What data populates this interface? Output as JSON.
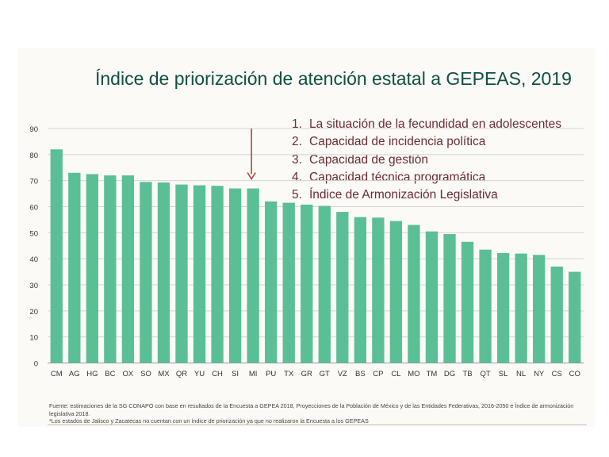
{
  "title": "Índice de priorización de atención estatal a GEPEAS, 2019",
  "criteria": [
    {
      "num": "1.",
      "text": "La situación de la fecundidad en adolescentes"
    },
    {
      "num": "2.",
      "text": "Capacidad de incidencia política"
    },
    {
      "num": "3.",
      "text": "Capacidad de gestión"
    },
    {
      "num": "4.",
      "text": "Capacidad técnica programática"
    },
    {
      "num": "5.",
      "text": "Índice de Armonización Legislativa"
    }
  ],
  "footnote": {
    "source": "Fuente: estimaciones de la SG CONAPO con base en resultados de la Encuesta a GEPEA 2018, Proyecciones de la Población de México y de las Entidades Federativas, 2016-2050 e Índice de armonización legislativa 2018.",
    "note": "*Los estados de Jalisco y Zacatecas no cuentan con un índice de priorización ya que no realizaron la Encuesta a los GEPEAS"
  },
  "colors": {
    "bar": "#5bbf96",
    "title": "#0f4f43",
    "criteria": "#6b2c33",
    "arrow": "#b5493f",
    "grid": "#d4d4d4"
  },
  "chart_data": {
    "type": "bar",
    "categories": [
      "CM",
      "AG",
      "HG",
      "BC",
      "OX",
      "SO",
      "MX",
      "QR",
      "YU",
      "CH",
      "SI",
      "MI",
      "PU",
      "TX",
      "GR",
      "GT",
      "VZ",
      "BS",
      "CP",
      "CL",
      "MO",
      "TM",
      "DG",
      "TB",
      "QT",
      "SL",
      "NL",
      "NY",
      "CS",
      "CO"
    ],
    "values": [
      82,
      73,
      72.5,
      72,
      72,
      69.5,
      69.3,
      68.5,
      68.2,
      68,
      67,
      67,
      62,
      61.5,
      60.8,
      60.3,
      58,
      56,
      55.8,
      54.5,
      53,
      50.5,
      49.5,
      46.5,
      43.5,
      42.2,
      42,
      41.5,
      37,
      35
    ],
    "yticks": [
      0,
      10,
      20,
      30,
      40,
      50,
      60,
      70,
      80,
      90
    ],
    "ylim": [
      0,
      90
    ],
    "grid": true,
    "highlight_category": "MI"
  }
}
